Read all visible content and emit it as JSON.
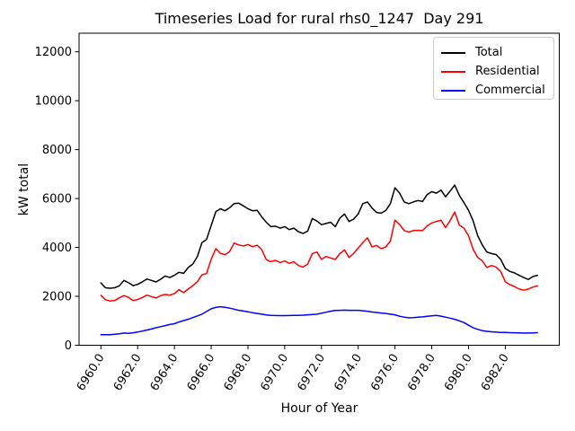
{
  "chart_data": {
    "type": "line",
    "title": "Timeseries Load for rural rhs0_1247  Day 291",
    "xlabel": "Hour of Year",
    "ylabel": "kW total",
    "xlim": [
      6958.8125,
      6984.9375
    ],
    "ylim": [
      0,
      12760
    ],
    "grid": false,
    "legend_position": "upper right",
    "xticks": [
      6960,
      6962,
      6964,
      6966,
      6968,
      6970,
      6972,
      6974,
      6976,
      6978,
      6980,
      6982
    ],
    "xtick_labels": [
      "6960.0",
      "6962.0",
      "6964.0",
      "6966.0",
      "6968.0",
      "6970.0",
      "6972.0",
      "6974.0",
      "6976.0",
      "6978.0",
      "6980.0",
      "6982.0"
    ],
    "yticks": [
      0,
      2000,
      4000,
      6000,
      8000,
      10000,
      12000
    ],
    "ytick_labels": [
      "0",
      "2000",
      "4000",
      "6000",
      "8000",
      "10000",
      "12000"
    ],
    "x": {
      "start": 6960.0,
      "step": 0.25,
      "count": 96
    },
    "series": [
      {
        "name": "Total",
        "color": "#000000",
        "values": [
          2550,
          2350,
          2330,
          2350,
          2430,
          2650,
          2560,
          2440,
          2490,
          2590,
          2710,
          2650,
          2590,
          2700,
          2830,
          2770,
          2860,
          2980,
          2940,
          3180,
          3320,
          3630,
          4200,
          4330,
          4900,
          5460,
          5580,
          5500,
          5620,
          5790,
          5810,
          5700,
          5580,
          5500,
          5520,
          5250,
          5030,
          4850,
          4870,
          4790,
          4850,
          4730,
          4790,
          4640,
          4570,
          4670,
          5180,
          5080,
          4930,
          4980,
          5030,
          4850,
          5200,
          5370,
          5060,
          5160,
          5370,
          5790,
          5860,
          5610,
          5430,
          5400,
          5510,
          5790,
          6440,
          6220,
          5860,
          5790,
          5860,
          5920,
          5880,
          6160,
          6280,
          6220,
          6345,
          6075,
          6300,
          6550,
          6130,
          5830,
          5520,
          5090,
          4480,
          4100,
          3810,
          3750,
          3710,
          3510,
          3140,
          3020,
          2960,
          2860,
          2770,
          2690,
          2810,
          2860
        ]
      },
      {
        "name": "Residential",
        "color": "#ff0000",
        "values": [
          2040,
          1860,
          1810,
          1830,
          1940,
          2030,
          1960,
          1830,
          1870,
          1950,
          2050,
          1990,
          1930,
          2030,
          2080,
          2050,
          2110,
          2270,
          2150,
          2300,
          2440,
          2600,
          2880,
          2930,
          3520,
          3950,
          3760,
          3700,
          3830,
          4180,
          4100,
          4060,
          4120,
          4030,
          4090,
          3910,
          3500,
          3420,
          3470,
          3385,
          3445,
          3350,
          3420,
          3260,
          3200,
          3320,
          3750,
          3810,
          3510,
          3630,
          3570,
          3510,
          3750,
          3900,
          3590,
          3750,
          3980,
          4200,
          4390,
          4020,
          4080,
          3950,
          4020,
          4260,
          5120,
          4940,
          4690,
          4630,
          4690,
          4700,
          4690,
          4880,
          5000,
          5060,
          5120,
          4810,
          5100,
          5450,
          4910,
          4790,
          4480,
          3930,
          3590,
          3450,
          3180,
          3260,
          3200,
          3020,
          2600,
          2480,
          2400,
          2300,
          2250,
          2300,
          2380,
          2430
        ]
      },
      {
        "name": "Commercial",
        "color": "#0000ff",
        "values": [
          430,
          430,
          435,
          450,
          470,
          500,
          490,
          510,
          540,
          580,
          620,
          665,
          715,
          760,
          805,
          850,
          880,
          950,
          1010,
          1063,
          1130,
          1200,
          1270,
          1380,
          1490,
          1550,
          1575,
          1555,
          1515,
          1475,
          1430,
          1400,
          1370,
          1330,
          1300,
          1270,
          1240,
          1220,
          1215,
          1210,
          1210,
          1215,
          1218,
          1222,
          1230,
          1245,
          1255,
          1270,
          1310,
          1350,
          1390,
          1420,
          1430,
          1435,
          1430,
          1430,
          1430,
          1410,
          1390,
          1360,
          1340,
          1320,
          1300,
          1270,
          1245,
          1185,
          1150,
          1125,
          1130,
          1150,
          1160,
          1185,
          1200,
          1220,
          1190,
          1150,
          1110,
          1063,
          1000,
          930,
          820,
          720,
          650,
          600,
          570,
          550,
          535,
          525,
          520,
          515,
          510,
          505,
          500,
          500,
          505,
          515
        ]
      }
    ]
  }
}
